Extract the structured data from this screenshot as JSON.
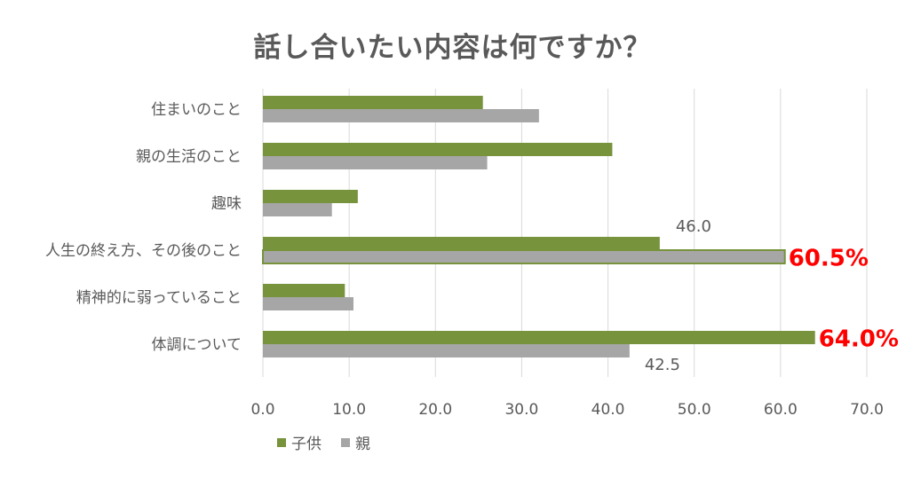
{
  "chart_data": {
    "type": "bar",
    "orientation": "horizontal",
    "title": "話し合いたい内容は何ですか？",
    "categories": [
      "住まいのこと",
      "親の生活のこと",
      "趣味",
      "人生の終え方、その後のこと",
      "精神的に弱っていること",
      "体調について"
    ],
    "series": [
      {
        "name": "子供",
        "color": "#77933c",
        "values": [
          25.5,
          40.5,
          11.0,
          46.0,
          9.5,
          64.0
        ]
      },
      {
        "name": "親",
        "color": "#a6a6a6",
        "values": [
          32.0,
          26.0,
          8.0,
          60.5,
          10.5,
          42.5
        ]
      }
    ],
    "xlim": [
      0,
      70
    ],
    "xticks": [
      "0.0",
      "10.0",
      "20.0",
      "30.0",
      "40.0",
      "50.0",
      "60.0",
      "70.0"
    ],
    "grid": true,
    "legend_position": "bottom",
    "annotations": [
      {
        "category_index": 3,
        "series_index": 0,
        "text": "46.0",
        "color": "#595959",
        "style": "normal"
      },
      {
        "category_index": 3,
        "series_index": 1,
        "text": "60.5%",
        "color": "#ff0000",
        "style": "bold"
      },
      {
        "category_index": 5,
        "series_index": 0,
        "text": "64.0%",
        "color": "#ff0000",
        "style": "bold"
      },
      {
        "category_index": 5,
        "series_index": 1,
        "text": "42.5",
        "color": "#595959",
        "style": "normal"
      }
    ],
    "highlight": {
      "category_index": 3,
      "outline_color": "#77933c"
    }
  }
}
